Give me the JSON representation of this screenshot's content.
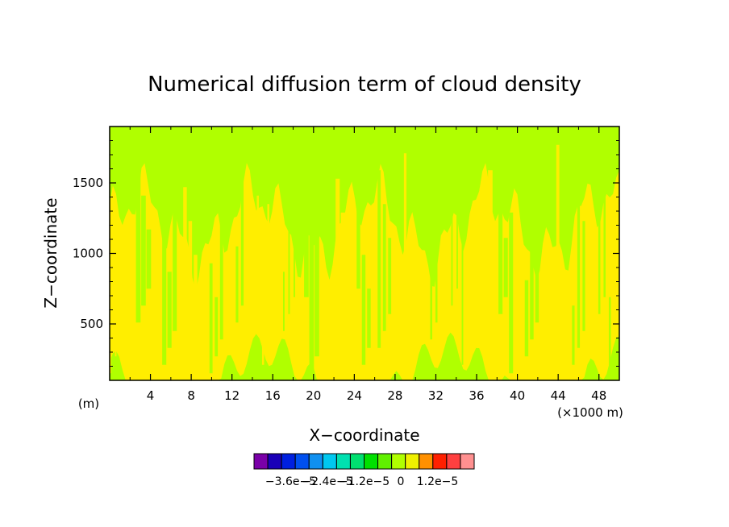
{
  "chart_data": {
    "type": "heatmap",
    "title": "Numerical diffusion term of cloud density",
    "xlabel": "X−coordinate",
    "ylabel": "Z−coordinate",
    "x_unit": "(×1000 m)",
    "y_unit": "(m)",
    "xlim": [
      0,
      50
    ],
    "ylim": [
      100,
      1900
    ],
    "x_ticks": [
      4,
      8,
      12,
      16,
      20,
      24,
      28,
      32,
      36,
      40,
      44,
      48
    ],
    "x_tick_labels": [
      "4",
      "8",
      "12",
      "16",
      "20",
      "24",
      "28",
      "32",
      "36",
      "40",
      "44",
      "48"
    ],
    "y_ticks": [
      500,
      1000,
      1500
    ],
    "y_tick_labels": [
      "500",
      "1000",
      "1500"
    ],
    "field_levels": {
      "upper_band": "-6e-6 to 0",
      "middle_band": "0 to 6e-6",
      "lower_band": "-6e-6 to 0"
    },
    "colorbar": {
      "colors": [
        "#7a00a8",
        "#1a00b8",
        "#0020e0",
        "#0050f0",
        "#1090f0",
        "#00c8f0",
        "#00e0b0",
        "#00e070",
        "#00e000",
        "#60f000",
        "#b0ff00",
        "#f0f000",
        "#ff9000",
        "#ff2000",
        "#ff4040",
        "#ff9090"
      ],
      "tick_labels": [
        "−3.6e−5",
        "−2.4e−5",
        "−1.2e−5",
        "0",
        "1.2e−5"
      ],
      "tick_values": [
        -3.6e-05,
        -2.4e-05,
        -1.2e-05,
        0,
        1.2e-05
      ],
      "min": -4.8e-05,
      "max": 2.4e-05
    },
    "grid": false
  }
}
